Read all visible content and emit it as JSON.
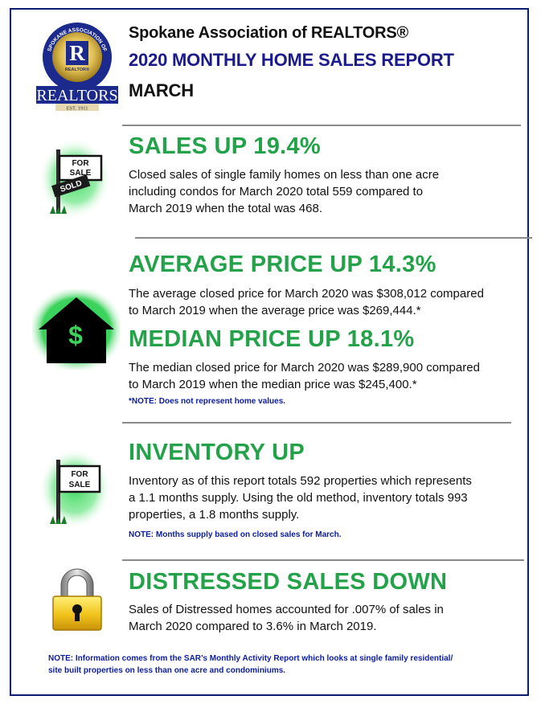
{
  "logo": {
    "ring_text": "SPOKANE ASSOCIATION OF",
    "letter": "R",
    "small": "REALTOR®",
    "banner": "REALTORS",
    "est": "EST. 1911"
  },
  "header": {
    "org": "Spokane Association of REALTORS®",
    "title": "2020 MONTHLY HOME SALES REPORT",
    "month": "MARCH"
  },
  "sections": {
    "sales": {
      "heading": "SALES UP 19.4%",
      "body": "Closed sales of single family homes on less than one acre\nincluding condos for March 2020 total 559 compared to\nMarch 2019 when the total was 468.",
      "sign_top": "FOR\nSALE",
      "sign_bottom": "SOLD"
    },
    "average": {
      "heading": "AVERAGE PRICE UP 14.3%",
      "body": "The average closed price for March 2020 was $308,012 compared\nto March 2019 when the average price was $269,444.*"
    },
    "median": {
      "heading": "MEDIAN PRICE UP 18.1%",
      "body": "The median closed price for March 2020 was $289,900 compared\nto March 2019 when the median price was $245,400.*",
      "note": "*NOTE:  Does not represent home values."
    },
    "house_icon_symbol": "$",
    "inventory": {
      "heading": "INVENTORY UP",
      "body": "Inventory as of this report totals 592 properties which represents\na 1.1 months supply.  Using the old method, inventory totals 993\nproperties, a 1.8 months supply.",
      "note": "NOTE:  Months supply based on closed sales for March.",
      "sign": "FOR\nSALE"
    },
    "distressed": {
      "heading": "DISTRESSED SALES DOWN",
      "body": "Sales of Distressed homes accounted for .007% of sales in\nMarch 2020 compared to 3.6% in March 2019."
    }
  },
  "footnote": "NOTE:  Information comes from the SAR’s Monthly Activity Report which looks at single family residential/\nsite built properties on less than one acre and condominiums.",
  "colors": {
    "heading_green": "#23a24a",
    "navy": "#0b1d6e",
    "note_blue": "#0b1d9e"
  },
  "icons": [
    "realtor-logo",
    "for-sale-sold-sign-icon",
    "house-dollar-icon",
    "for-sale-sign-icon",
    "padlock-icon"
  ]
}
